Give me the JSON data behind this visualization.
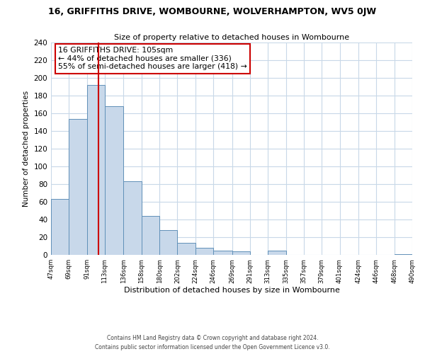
{
  "title_line1": "16, GRIFFITHS DRIVE, WOMBOURNE, WOLVERHAMPTON, WV5 0JW",
  "title_line2": "Size of property relative to detached houses in Wombourne",
  "xlabel": "Distribution of detached houses by size in Wombourne",
  "ylabel": "Number of detached properties",
  "bar_edges": [
    47,
    69,
    91,
    113,
    136,
    158,
    180,
    202,
    224,
    246,
    269,
    291,
    313,
    335,
    357,
    379,
    401,
    424,
    446,
    468,
    490
  ],
  "bar_heights": [
    63,
    154,
    192,
    168,
    83,
    44,
    28,
    14,
    8,
    5,
    4,
    0,
    5,
    0,
    0,
    0,
    0,
    0,
    0,
    1
  ],
  "bar_color": "#c8d8ea",
  "bar_edge_color": "#6090b8",
  "property_line_x": 105,
  "annotation_title": "16 GRIFFITHS DRIVE: 105sqm",
  "annotation_line1": "← 44% of detached houses are smaller (336)",
  "annotation_line2": "55% of semi-detached houses are larger (418) →",
  "annotation_box_color": "#ffffff",
  "annotation_box_edge": "#cc0000",
  "property_line_color": "#cc0000",
  "ylim": [
    0,
    240
  ],
  "yticks": [
    0,
    20,
    40,
    60,
    80,
    100,
    120,
    140,
    160,
    180,
    200,
    220,
    240
  ],
  "x_tick_labels": [
    "47sqm",
    "69sqm",
    "91sqm",
    "113sqm",
    "136sqm",
    "158sqm",
    "180sqm",
    "202sqm",
    "224sqm",
    "246sqm",
    "269sqm",
    "291sqm",
    "313sqm",
    "335sqm",
    "357sqm",
    "379sqm",
    "401sqm",
    "424sqm",
    "446sqm",
    "468sqm",
    "490sqm"
  ],
  "footnote1": "Contains HM Land Registry data © Crown copyright and database right 2024.",
  "footnote2": "Contains public sector information licensed under the Open Government Licence v3.0.",
  "bg_color": "#ffffff",
  "grid_color": "#c8d8e8"
}
